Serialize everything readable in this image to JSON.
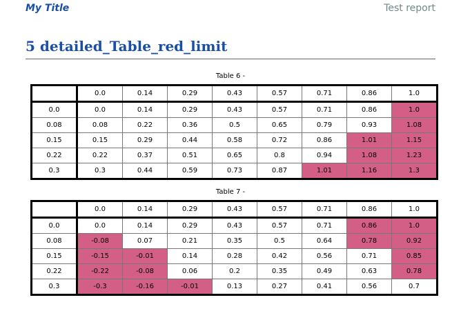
{
  "header": {
    "left_title": "My Title",
    "right_title": "Test report"
  },
  "section": {
    "title": "5 detailed_Table_red_limit"
  },
  "colors": {
    "highlight": "#d35f86",
    "heading": "#1a4fa3"
  },
  "tables": [
    {
      "caption": "Table 6 -",
      "column_headers": [
        "",
        "0.0",
        "0.14",
        "0.29",
        "0.43",
        "0.57",
        "0.71",
        "0.86",
        "1.0"
      ],
      "rows": [
        {
          "label": "0.0",
          "cells": [
            "0.0",
            "0.14",
            "0.29",
            "0.43",
            "0.57",
            "0.71",
            "0.86",
            "1.0"
          ],
          "highlight": [
            false,
            false,
            false,
            false,
            false,
            false,
            false,
            true
          ]
        },
        {
          "label": "0.08",
          "cells": [
            "0.08",
            "0.22",
            "0.36",
            "0.5",
            "0.65",
            "0.79",
            "0.93",
            "1.08"
          ],
          "highlight": [
            false,
            false,
            false,
            false,
            false,
            false,
            false,
            true
          ]
        },
        {
          "label": "0.15",
          "cells": [
            "0.15",
            "0.29",
            "0.44",
            "0.58",
            "0.72",
            "0.86",
            "1.01",
            "1.15"
          ],
          "highlight": [
            false,
            false,
            false,
            false,
            false,
            false,
            true,
            true
          ]
        },
        {
          "label": "0.22",
          "cells": [
            "0.22",
            "0.37",
            "0.51",
            "0.65",
            "0.8",
            "0.94",
            "1.08",
            "1.23"
          ],
          "highlight": [
            false,
            false,
            false,
            false,
            false,
            false,
            true,
            true
          ]
        },
        {
          "label": "0.3",
          "cells": [
            "0.3",
            "0.44",
            "0.59",
            "0.73",
            "0.87",
            "1.01",
            "1.16",
            "1.3"
          ],
          "highlight": [
            false,
            false,
            false,
            false,
            false,
            true,
            true,
            true
          ]
        }
      ]
    },
    {
      "caption": "Table 7 -",
      "column_headers": [
        "",
        "0.0",
        "0.14",
        "0.29",
        "0.43",
        "0.57",
        "0.71",
        "0.86",
        "1.0"
      ],
      "rows": [
        {
          "label": "0.0",
          "cells": [
            "0.0",
            "0.14",
            "0.29",
            "0.43",
            "0.57",
            "0.71",
            "0.86",
            "1.0"
          ],
          "highlight": [
            false,
            false,
            false,
            false,
            false,
            false,
            true,
            true
          ]
        },
        {
          "label": "0.08",
          "cells": [
            "-0.08",
            "0.07",
            "0.21",
            "0.35",
            "0.5",
            "0.64",
            "0.78",
            "0.92"
          ],
          "highlight": [
            true,
            false,
            false,
            false,
            false,
            false,
            true,
            true
          ]
        },
        {
          "label": "0.15",
          "cells": [
            "-0.15",
            "-0.01",
            "0.14",
            "0.28",
            "0.42",
            "0.56",
            "0.71",
            "0.85"
          ],
          "highlight": [
            true,
            true,
            false,
            false,
            false,
            false,
            false,
            true
          ]
        },
        {
          "label": "0.22",
          "cells": [
            "-0.22",
            "-0.08",
            "0.06",
            "0.2",
            "0.35",
            "0.49",
            "0.63",
            "0.78"
          ],
          "highlight": [
            true,
            true,
            false,
            false,
            false,
            false,
            false,
            true
          ]
        },
        {
          "label": "0.3",
          "cells": [
            "-0.3",
            "-0.16",
            "-0.01",
            "0.13",
            "0.27",
            "0.41",
            "0.56",
            "0.7"
          ],
          "highlight": [
            true,
            true,
            true,
            false,
            false,
            false,
            false,
            false
          ]
        }
      ]
    }
  ]
}
